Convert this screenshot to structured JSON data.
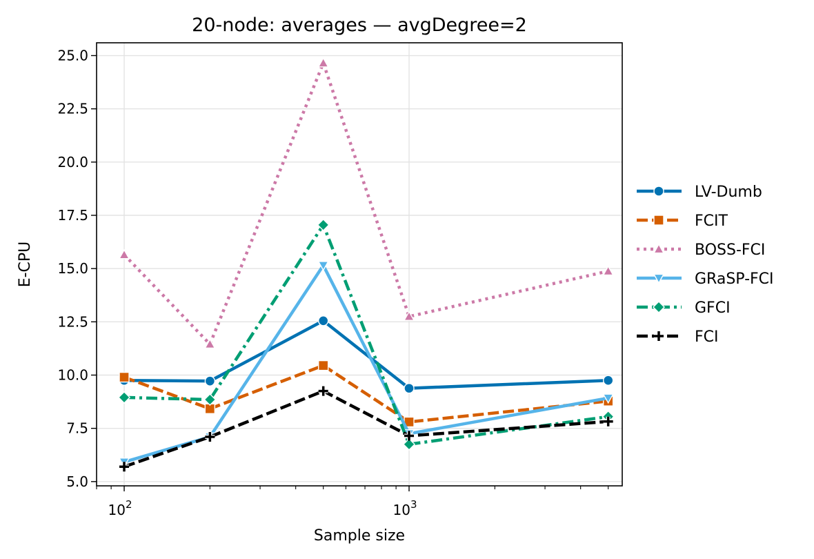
{
  "chart_data": {
    "type": "line",
    "title": "20-node: averages — avgDegree=2",
    "xlabel": "Sample size",
    "ylabel": "E-CPU",
    "xscale": "log",
    "xlim": [
      80,
      5600
    ],
    "ylim": [
      4.8,
      25.6
    ],
    "x": [
      100,
      200,
      500,
      1000,
      5000
    ],
    "yticks": [
      5.0,
      7.5,
      10.0,
      12.5,
      15.0,
      17.5,
      20.0,
      22.5,
      25.0
    ],
    "ytick_labels": [
      "5.0",
      "7.5",
      "10.0",
      "12.5",
      "15.0",
      "17.5",
      "20.0",
      "22.5",
      "25.0"
    ],
    "xticks": [
      {
        "value": 100,
        "base": "10",
        "exp": "2"
      },
      {
        "value": 1000,
        "base": "10",
        "exp": "3"
      }
    ],
    "grid": true,
    "legend_position": "right-outside",
    "series": [
      {
        "name": "LV-Dumb",
        "color": "#0072b2",
        "marker": "circle",
        "dash": "solid",
        "values": [
          9.75,
          9.72,
          12.55,
          9.38,
          9.75
        ]
      },
      {
        "name": "FCIT",
        "color": "#d55e00",
        "marker": "square",
        "dash": "dashed",
        "values": [
          9.9,
          8.42,
          10.45,
          7.8,
          8.78
        ]
      },
      {
        "name": "BOSS-FCI",
        "color": "#cc79a7",
        "marker": "triangle-up",
        "dash": "dotted",
        "values": [
          15.65,
          11.45,
          24.65,
          12.75,
          14.88
        ]
      },
      {
        "name": "GRaSP-FCI",
        "color": "#56b4e9",
        "marker": "triangle-down",
        "dash": "solid",
        "values": [
          5.92,
          7.1,
          15.15,
          7.25,
          8.92
        ]
      },
      {
        "name": "GFCI",
        "color": "#009e73",
        "marker": "diamond",
        "dash": "dashdot",
        "values": [
          8.95,
          8.85,
          17.05,
          6.75,
          8.05
        ]
      },
      {
        "name": "FCI",
        "color": "#000000",
        "marker": "plus",
        "dash": "dashed",
        "values": [
          5.7,
          7.1,
          9.25,
          7.15,
          7.82
        ]
      }
    ]
  }
}
